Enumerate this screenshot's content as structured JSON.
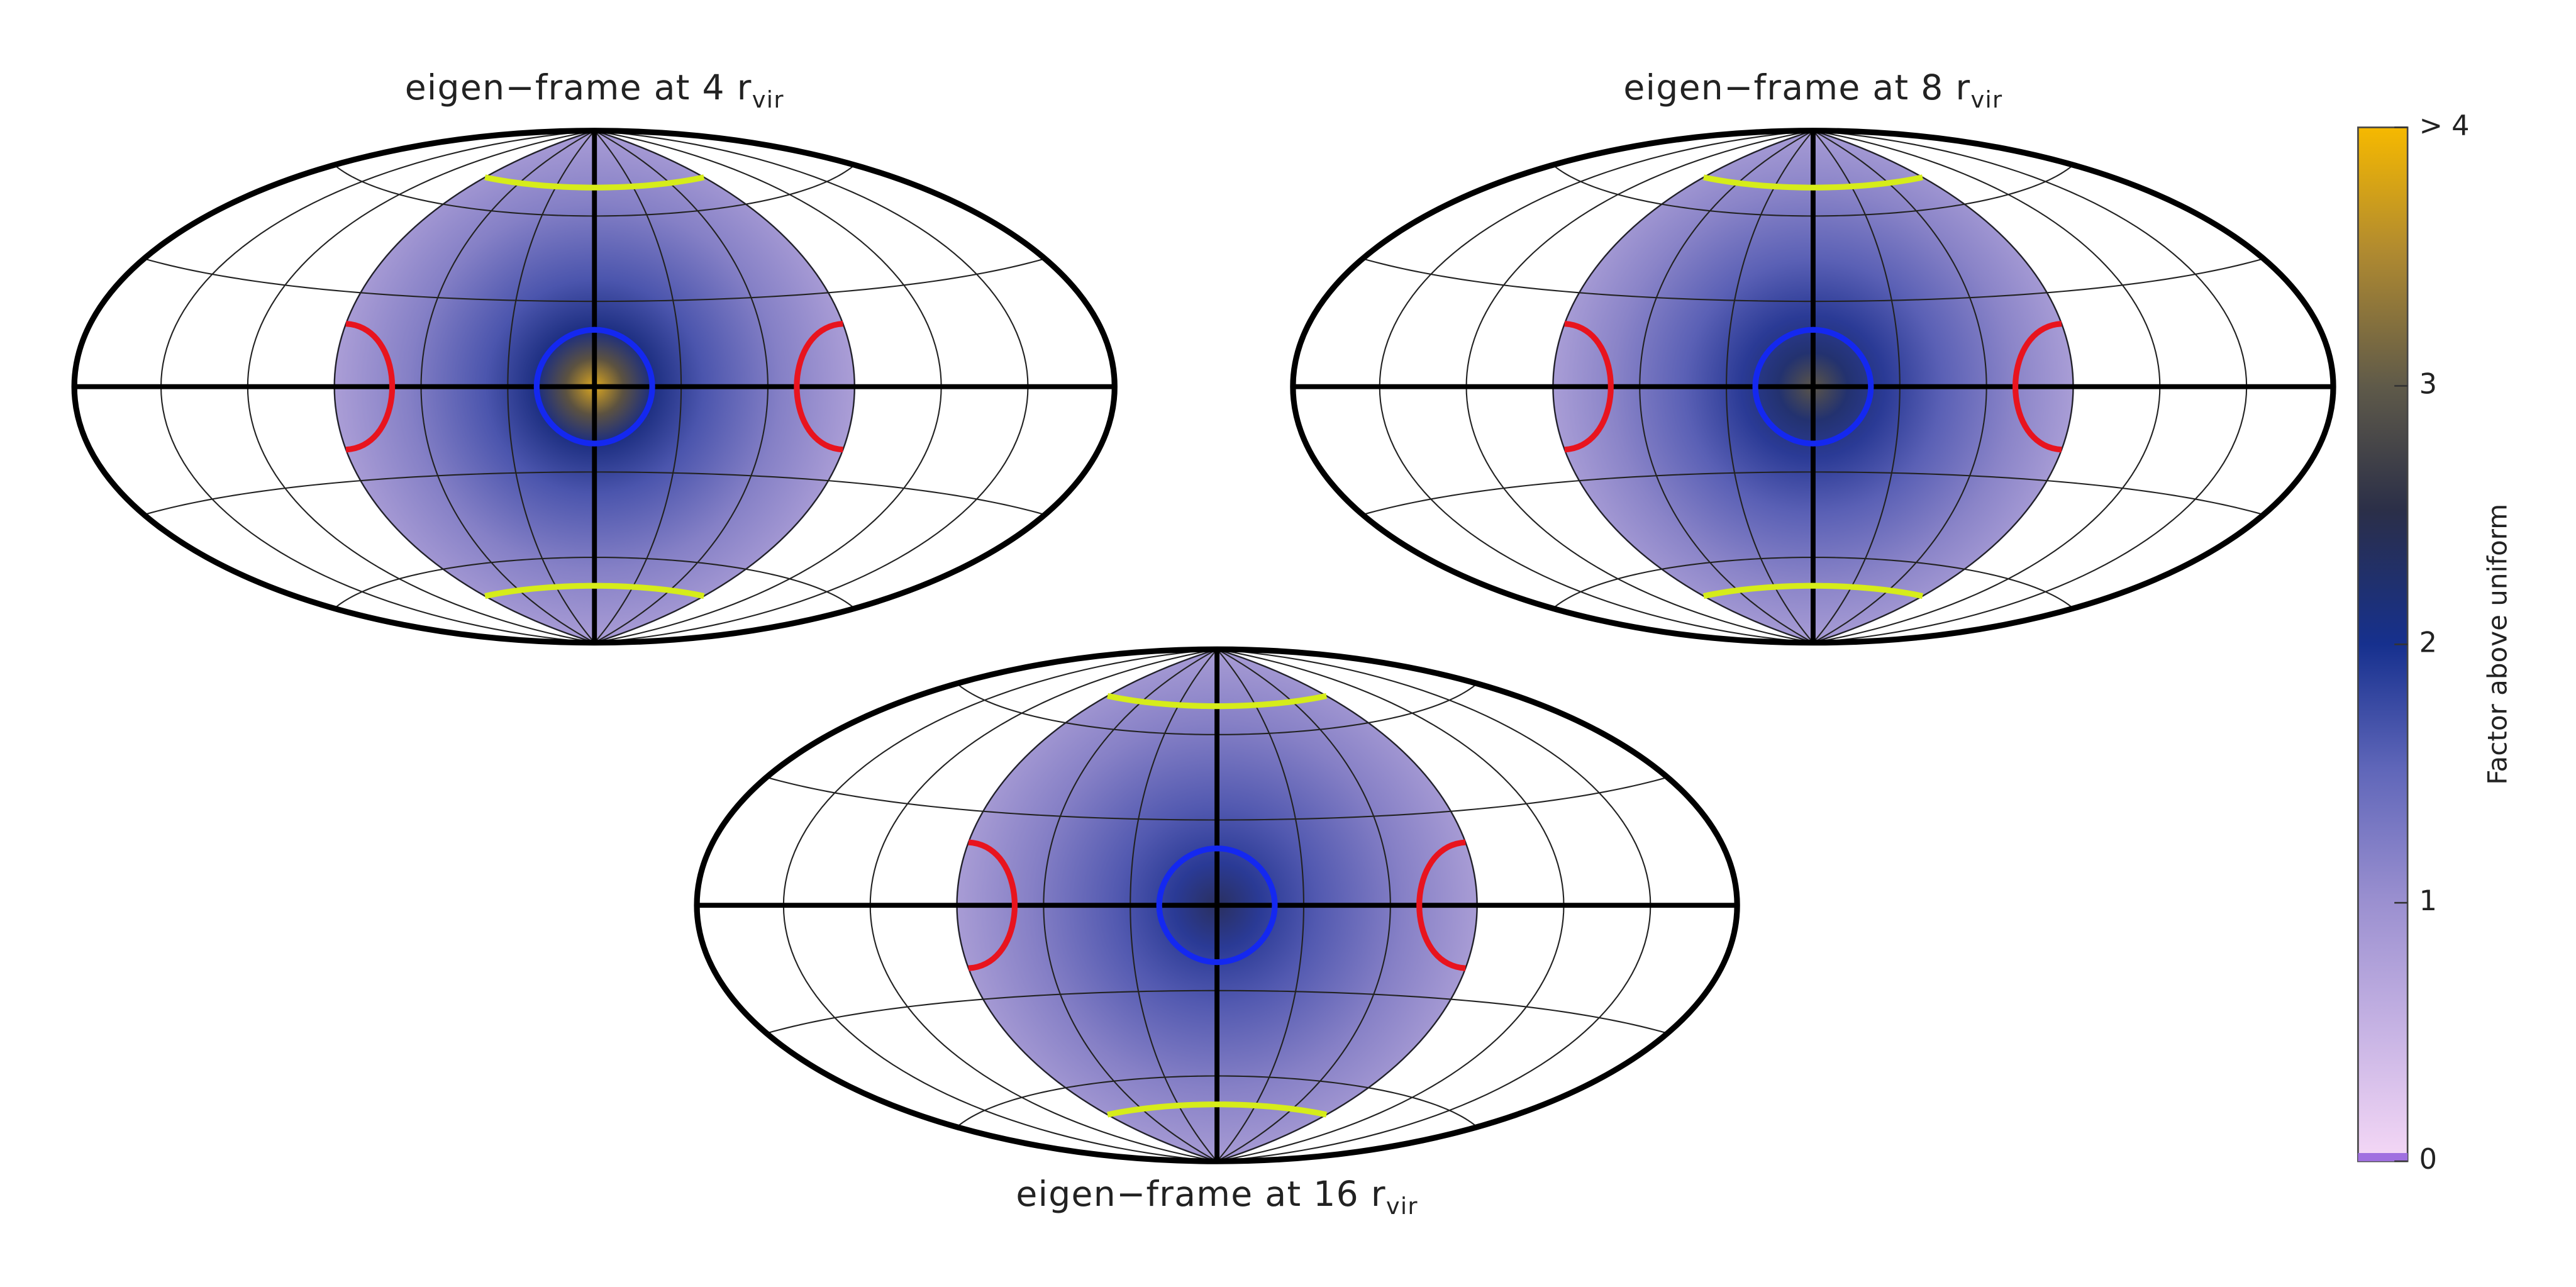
{
  "chart_data": [
    {
      "type": "skymap",
      "title": "eigen−frame at 4 r",
      "title_subscript": "vir"
    },
    {
      "type": "skymap",
      "title": "eigen−frame at 8 r",
      "title_subscript": "vir"
    },
    {
      "type": "skymap",
      "title": "eigen−frame at 16 r",
      "title_subscript": "vir"
    }
  ],
  "colorbar": {
    "label": "Factor above uniform",
    "zlim": [
      0,
      4
    ],
    "ticks": [
      0,
      1,
      2,
      3,
      {
        "value": 4,
        "label": "> 4"
      }
    ]
  }
}
